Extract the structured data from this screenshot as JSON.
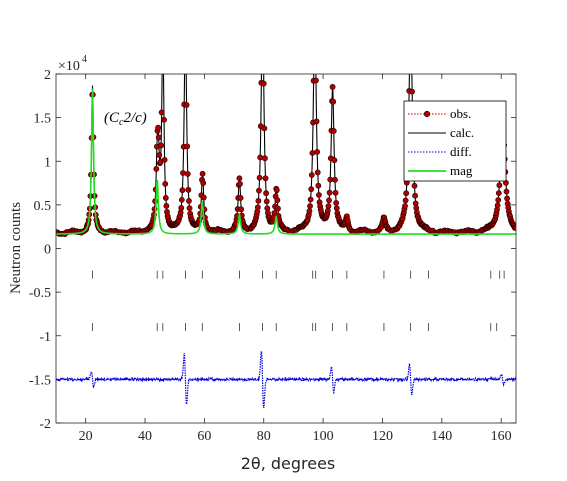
{
  "chart_data": {
    "type": "line",
    "ylabel": "Neutron counts",
    "xlabel": "2θ, degrees",
    "y_multiplier": "×10",
    "y_multiplier_exp": "4",
    "xlim": [
      10,
      165
    ],
    "ylim": [
      -2,
      2
    ],
    "x_ticks": [
      20,
      40,
      60,
      80,
      100,
      120,
      140,
      160
    ],
    "x_tick_labels": [
      "20",
      "40",
      "60",
      "80",
      "100",
      "120",
      "140",
      "160"
    ],
    "y_ticks": [
      -2,
      -1.5,
      -1,
      -0.5,
      0,
      0.5,
      1,
      1.5,
      2
    ],
    "y_tick_labels": [
      "-2",
      "-1.5",
      "-1",
      "-0.5",
      "0",
      "0.5",
      "1",
      "1.5",
      "2"
    ],
    "annotation": "(C_c2/c)",
    "baseline": 0.18,
    "diff_offset": -1.5,
    "legend_position": "top-right",
    "series": [
      {
        "name": "obs.",
        "color": "#c00000",
        "style": "dotted-circles"
      },
      {
        "name": "calc.",
        "color": "#000000",
        "style": "solid"
      },
      {
        "name": "diff.",
        "color": "#0000dd",
        "style": "dotted"
      },
      {
        "name": "mag",
        "color": "#22dd22",
        "style": "solid"
      }
    ],
    "nuclear_peaks": [
      {
        "x": 44.5,
        "height": 0.62,
        "width": 0.45
      },
      {
        "x": 46.0,
        "height": 2.2,
        "width": 0.45
      },
      {
        "x": 53.6,
        "height": 2.4,
        "width": 0.5
      },
      {
        "x": 59.5,
        "height": 0.3,
        "width": 0.45
      },
      {
        "x": 71.8,
        "height": 0.38,
        "width": 0.5
      },
      {
        "x": 79.6,
        "height": 2.6,
        "width": 0.55
      },
      {
        "x": 84.3,
        "height": 0.27,
        "width": 0.5
      },
      {
        "x": 97.2,
        "height": 2.5,
        "width": 0.6
      },
      {
        "x": 103.2,
        "height": 1.65,
        "width": 0.6
      },
      {
        "x": 108.0,
        "height": 0.14,
        "width": 0.55
      },
      {
        "x": 120.5,
        "height": 0.14,
        "width": 0.6
      },
      {
        "x": 129.5,
        "height": 2.45,
        "width": 0.7
      },
      {
        "x": 160.5,
        "height": 1.25,
        "width": 1.0
      }
    ],
    "magnetic_peaks": [
      {
        "x": 22.3,
        "height": 1.67,
        "width": 0.4
      },
      {
        "x": 44.1,
        "height": 0.62,
        "width": 0.45
      },
      {
        "x": 59.3,
        "height": 0.38,
        "width": 0.45
      },
      {
        "x": 71.8,
        "height": 0.22,
        "width": 0.5
      },
      {
        "x": 84.2,
        "height": 0.2,
        "width": 0.5
      }
    ],
    "diff_features": [
      {
        "x": 22.3,
        "amp": 0.12
      },
      {
        "x": 53.6,
        "amp": 0.38
      },
      {
        "x": 79.6,
        "amp": 0.42
      },
      {
        "x": 103.2,
        "amp": 0.18
      },
      {
        "x": 129.5,
        "amp": 0.22
      },
      {
        "x": 160.5,
        "amp": 0.08
      }
    ],
    "tick_rows": [
      {
        "y": -0.3,
        "positions": [
          22.3,
          44.1,
          46.0,
          53.6,
          59.3,
          71.8,
          79.6,
          84.2,
          96.5,
          97.5,
          103.2,
          108.0,
          120.5,
          129.5,
          135.5,
          156.5,
          159.5,
          161.0
        ]
      },
      {
        "y": -0.9,
        "positions": [
          22.3,
          44.1,
          46.0,
          53.6,
          59.3,
          71.8,
          79.6,
          84.2,
          96.5,
          97.5,
          103.2,
          108.0,
          120.5,
          129.5,
          135.5,
          156.5,
          158.5
        ]
      }
    ]
  }
}
